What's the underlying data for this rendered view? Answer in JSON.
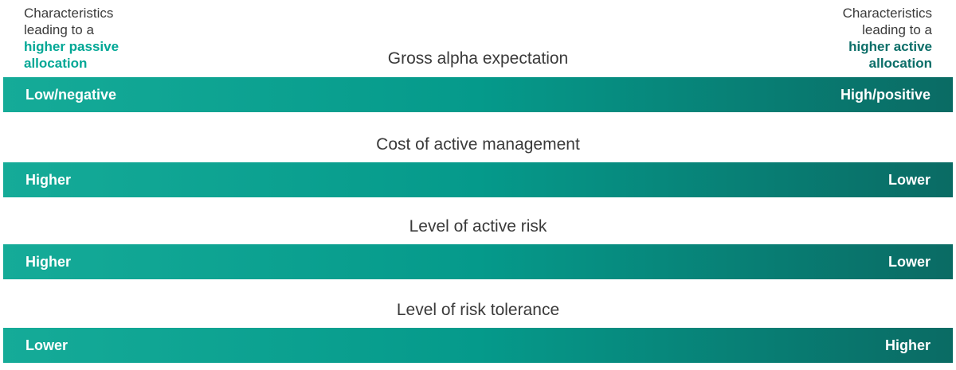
{
  "colors": {
    "text_dark": "#3b3b3b",
    "passive_teal": "#00a795",
    "active_teal": "#0b6e68",
    "bar_gradient_start": "#15ab98",
    "bar_gradient_mid": "#059a8b",
    "bar_gradient_end": "#0a6b64",
    "bar_label": "#ffffff"
  },
  "header": {
    "left": {
      "lines": [
        "Characteristics",
        "leading to a",
        "higher passive",
        "allocation"
      ]
    },
    "right": {
      "lines": [
        "Characteristics",
        "leading to a",
        "higher active",
        "allocation"
      ]
    }
  },
  "rows": [
    {
      "title": "Gross alpha expectation",
      "left_label": "Low/negative",
      "right_label": "High/positive"
    },
    {
      "title": "Cost of active management",
      "left_label": "Higher",
      "right_label": "Lower"
    },
    {
      "title": "Level of active risk",
      "left_label": "Higher",
      "right_label": "Lower"
    },
    {
      "title": "Level of risk tolerance",
      "left_label": "Lower",
      "right_label": "Higher"
    }
  ],
  "chart_data": {
    "type": "table",
    "title": "Characteristics leading to a higher passive vs. higher active allocation",
    "categories": [
      "Gross alpha expectation",
      "Cost of active management",
      "Level of active risk",
      "Level of risk tolerance"
    ],
    "series": [
      {
        "name": "higher passive allocation end",
        "values": [
          "Low/negative",
          "Higher",
          "Higher",
          "Lower"
        ]
      },
      {
        "name": "higher active allocation end",
        "values": [
          "High/positive",
          "Lower",
          "Lower",
          "Higher"
        ]
      }
    ],
    "legend_position": "top",
    "grid": false
  }
}
